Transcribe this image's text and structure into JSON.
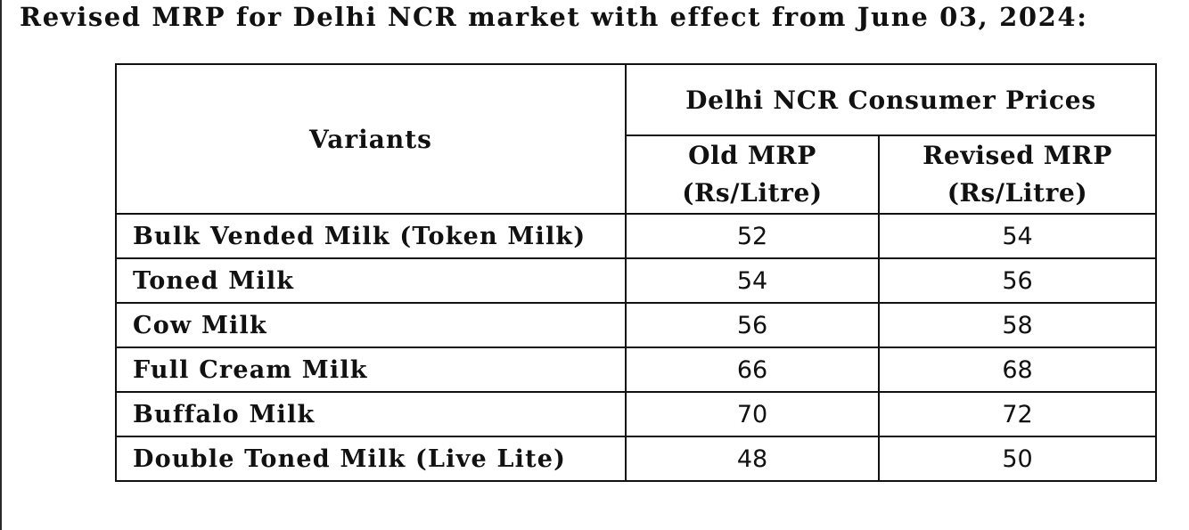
{
  "heading": "Revised MRP for Delhi NCR market with effect from June 03, 2024:",
  "table": {
    "variants_header": "Variants",
    "group_header": "Delhi NCR Consumer Prices",
    "old_header_line1": "Old MRP",
    "old_header_line2": "(Rs/Litre)",
    "new_header_line1": "Revised MRP",
    "new_header_line2": "(Rs/Litre)",
    "rows": [
      {
        "variant": "Bulk Vended Milk (Token Milk)",
        "old": "52",
        "revised": "54"
      },
      {
        "variant": "Toned Milk",
        "old": "54",
        "revised": "56"
      },
      {
        "variant": "Cow Milk",
        "old": "56",
        "revised": "58"
      },
      {
        "variant": "Full Cream Milk",
        "old": "66",
        "revised": "68"
      },
      {
        "variant": "Buffalo Milk",
        "old": "70",
        "revised": "72"
      },
      {
        "variant": "Double Toned Milk (Live Lite)",
        "old": "48",
        "revised": "50"
      }
    ]
  }
}
